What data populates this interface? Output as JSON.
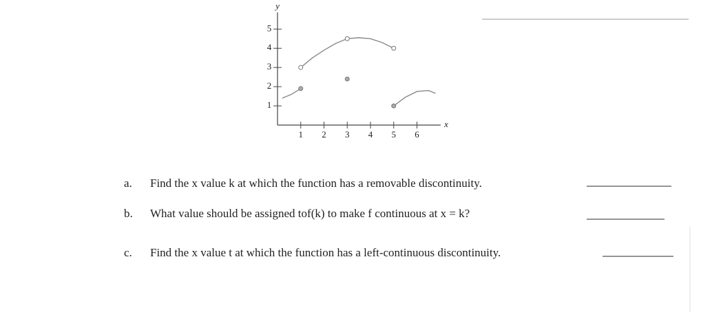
{
  "chart_data": {
    "type": "line",
    "x_label": "x",
    "y_label": "y",
    "xlim": [
      0,
      7.2
    ],
    "ylim": [
      0,
      6.3
    ],
    "xticks": [
      1,
      2,
      3,
      4,
      5,
      6
    ],
    "yticks": [
      1,
      2,
      3,
      4,
      5
    ],
    "color": "#888888",
    "x": [
      0.2,
      0.6,
      1,
      null,
      1,
      1.5,
      2,
      2.5,
      3,
      3.5,
      4,
      4.5,
      5,
      null,
      5,
      5.5,
      6,
      6.5,
      6.8
    ],
    "values": [
      1.4,
      1.6,
      1.9,
      null,
      3,
      3.5,
      3.9,
      4.25,
      4.5,
      4.55,
      4.5,
      4.3,
      4,
      null,
      1,
      1.45,
      1.75,
      1.8,
      1.65
    ],
    "points": [
      {
        "x": 1,
        "y": 1.9,
        "open": false
      },
      {
        "x": 1,
        "y": 3,
        "open": true
      },
      {
        "x": 3,
        "y": 4.5,
        "open": true
      },
      {
        "x": 3,
        "y": 2.4,
        "open": false
      },
      {
        "x": 5,
        "y": 4,
        "open": true
      },
      {
        "x": 5,
        "y": 1,
        "open": false
      }
    ]
  },
  "questions": [
    {
      "letter": "a.",
      "text": "Find the x value k at which the function has a removable discontinuity."
    },
    {
      "letter": "b.",
      "text": "What value should be assigned tof(k) to make f continuous at x = k?"
    },
    {
      "letter": "c.",
      "text": "Find the x value t at which the function has a left-continuous discontinuity."
    }
  ]
}
